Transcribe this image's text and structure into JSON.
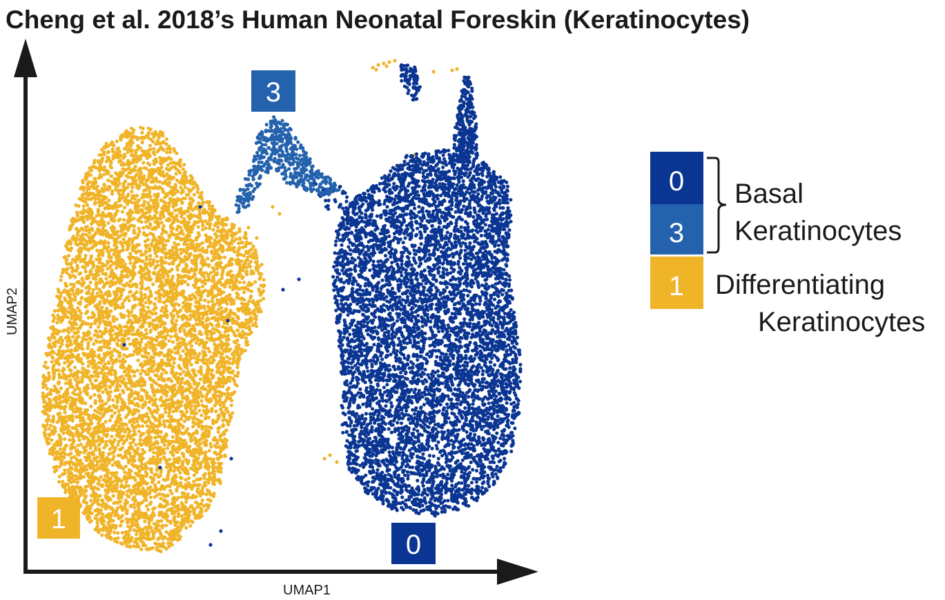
{
  "chart_data": {
    "type": "scatter",
    "title": "Cheng et al. 2018’s Human Neonatal Foreskin (Keratinocytes)",
    "xlabel": "UMAP1",
    "ylabel": "UMAP2",
    "xlim": [
      0,
      100
    ],
    "ylim": [
      0,
      100
    ],
    "grid": false,
    "legend_position": "right",
    "clusters": [
      {
        "id": "0",
        "label": "0",
        "color": "#0a3592",
        "centroid": [
          78,
          45
        ]
      },
      {
        "id": "3",
        "label": "3",
        "color": "#2462ad",
        "centroid": [
          49,
          78
        ]
      },
      {
        "id": "1",
        "label": "1",
        "color": "#f0b429",
        "centroid": [
          26,
          38
        ]
      }
    ],
    "cluster_labels": [
      {
        "cluster": "3",
        "text": "3",
        "color": "#2462ad"
      },
      {
        "cluster": "1",
        "text": "1",
        "color": "#f0b429"
      },
      {
        "cluster": "0",
        "text": "0",
        "color": "#0a3592"
      }
    ],
    "legend": {
      "entries": [
        {
          "cluster": "0",
          "text": "0",
          "color": "#0a3592"
        },
        {
          "cluster": "3",
          "text": "3",
          "color": "#2462ad"
        },
        {
          "cluster": "1",
          "text": "1",
          "color": "#f0b429"
        }
      ],
      "group_basal": {
        "clusters": [
          "0",
          "3"
        ],
        "line1": "Basal",
        "line2": "Keratinocytes"
      },
      "group_diff": {
        "clusters": [
          "1"
        ],
        "line1": "Differentiating",
        "line2": "Keratinocytes"
      }
    }
  }
}
